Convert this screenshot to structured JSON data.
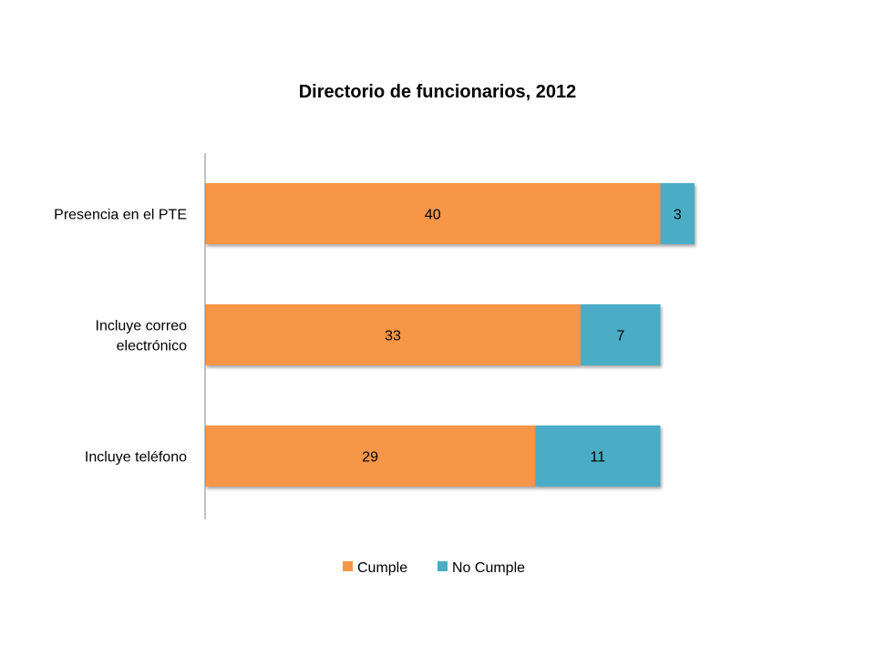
{
  "chart_data": {
    "type": "bar",
    "orientation": "horizontal",
    "stacked": true,
    "title": "Directorio de funcionarios, 2012",
    "categories": [
      [
        "Presencia en el PTE"
      ],
      [
        "Incluye correo",
        "electrónico"
      ],
      [
        "Incluye teléfono"
      ]
    ],
    "series": [
      {
        "name": "Cumple",
        "color": "#F79646",
        "values": [
          40,
          33,
          29
        ]
      },
      {
        "name": "No Cumple",
        "color": "#4BACC6",
        "values": [
          3,
          7,
          11
        ]
      }
    ],
    "xlim": [
      0,
      43
    ],
    "grid": false,
    "legend_position": "bottom",
    "data_labels": true
  }
}
